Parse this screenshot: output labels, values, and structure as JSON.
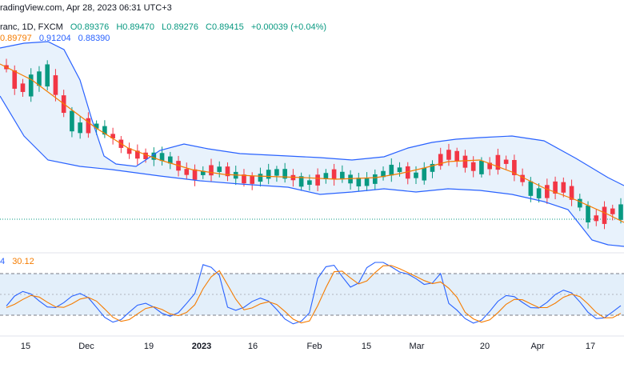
{
  "header": {
    "source_line": "radingView.com, Apr 28, 2023 06:31 UTC+3",
    "symbol": "ranc, 1D, FXCM",
    "ohlc": {
      "open": "O0.89376",
      "high": "H0.89470",
      "low": "L0.89276",
      "close": "C0.89415",
      "change": "+0.00039 (+0.04%)"
    },
    "bb_values": {
      "basis": "0.89797",
      "upper": "0.91204",
      "lower": "0.88390"
    },
    "osc_values": {
      "k": "4",
      "d": "30.12"
    }
  },
  "x_axis": {
    "ticks": [
      {
        "label": "15",
        "bold": false
      },
      {
        "label": "Dec",
        "bold": false
      },
      {
        "label": "19",
        "bold": false
      },
      {
        "label": "2023",
        "bold": true
      },
      {
        "label": "16",
        "bold": false
      },
      {
        "label": "Feb",
        "bold": false
      },
      {
        "label": "15",
        "bold": false
      },
      {
        "label": "Mar",
        "bold": false
      },
      {
        "label": "20",
        "bold": false
      },
      {
        "label": "Apr",
        "bold": false
      },
      {
        "label": "17",
        "bold": false
      }
    ]
  },
  "colors": {
    "up": "#089981",
    "down": "#f23645",
    "basis": "#f57c00",
    "band": "#2962ff",
    "band_fill": "#e8f2fc",
    "osc_k": "#2962ff",
    "osc_d": "#f57c00",
    "osc_band_fill": "#e3effa"
  },
  "chart_data": {
    "type": "candlestick",
    "timeframe": "1D",
    "provider": "FXCM",
    "indicators": [
      "Bollinger Bands",
      "Oscillator"
    ],
    "candles_direction": [
      -1,
      -1,
      -1,
      1,
      1,
      1,
      -1,
      -1,
      1,
      1,
      -1,
      1,
      1,
      -1,
      -1,
      -1,
      -1,
      -1,
      1,
      1,
      1,
      -1,
      -1,
      -1,
      1,
      -1,
      1,
      -1,
      1,
      -1,
      -1,
      1,
      1,
      1,
      1,
      -1,
      1,
      1,
      -1,
      1,
      -1,
      1,
      1,
      1,
      1,
      1,
      1,
      1,
      1,
      -1,
      1,
      1,
      1,
      -1,
      -1,
      -1,
      -1,
      -1,
      1,
      -1,
      -1,
      -1,
      -1,
      -1,
      1,
      1,
      -1,
      -1,
      -1,
      -1,
      1,
      1,
      -1,
      -1,
      -1,
      1
    ]
  }
}
